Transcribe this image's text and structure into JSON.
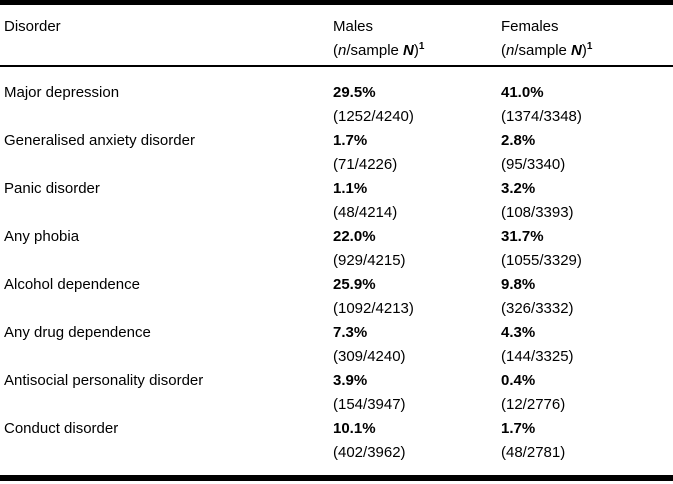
{
  "header": {
    "col_disorder": "Disorder",
    "col_males": "Males",
    "col_females": "Females",
    "sub": {
      "open": "(",
      "n": "n",
      "mid": "/sample ",
      "N": "N",
      "close": ")",
      "sup": "1"
    }
  },
  "rows": [
    {
      "disorder": "Major depression",
      "males_pct": "29.5%",
      "males_frac": "(1252/4240)",
      "females_pct": "41.0%",
      "females_frac": "(1374/3348)"
    },
    {
      "disorder": "Generalised anxiety disorder",
      "males_pct": "1.7%",
      "males_frac": "(71/4226)",
      "females_pct": "2.8%",
      "females_frac": "(95/3340)"
    },
    {
      "disorder": "Panic disorder",
      "males_pct": "1.1%",
      "males_frac": "(48/4214)",
      "females_pct": "3.2%",
      "females_frac": "(108/3393)"
    },
    {
      "disorder": "Any phobia",
      "males_pct": "22.0%",
      "males_frac": "(929/4215)",
      "females_pct": "31.7%",
      "females_frac": "(1055/3329)"
    },
    {
      "disorder": "Alcohol dependence",
      "males_pct": "25.9%",
      "males_frac": "(1092/4213)",
      "females_pct": "9.8%",
      "females_frac": "(326/3332)"
    },
    {
      "disorder": "Any drug dependence",
      "males_pct": "7.3%",
      "males_frac": "(309/4240)",
      "females_pct": "4.3%",
      "females_frac": "(144/3325)"
    },
    {
      "disorder": "Antisocial personality disorder",
      "males_pct": "3.9%",
      "males_frac": "(154/3947)",
      "females_pct": "0.4%",
      "females_frac": "(12/2776)"
    },
    {
      "disorder": "Conduct disorder",
      "males_pct": "10.1%",
      "males_frac": "(402/3962)",
      "females_pct": "1.7%",
      "females_frac": "(48/2781)"
    }
  ],
  "colors": {
    "text": "#000000",
    "background": "#ffffff",
    "rule": "#000000"
  }
}
